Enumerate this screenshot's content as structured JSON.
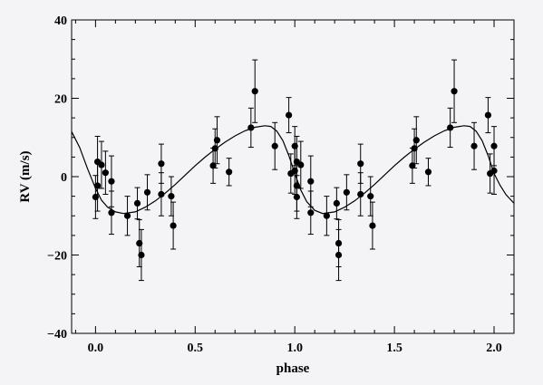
{
  "chart_data": {
    "type": "scatter",
    "title": "",
    "xlabel": "phase",
    "ylabel": "RV (m/s)",
    "xlim": [
      -0.12,
      2.1
    ],
    "ylim": [
      -40,
      40
    ],
    "x_ticks": [
      {
        "value": 0.0,
        "label": "0.0"
      },
      {
        "value": 0.5,
        "label": "0.5"
      },
      {
        "value": 1.0,
        "label": "1.0"
      },
      {
        "value": 1.5,
        "label": "1.5"
      },
      {
        "value": 2.0,
        "label": "2.0"
      }
    ],
    "y_ticks": [
      {
        "value": -40,
        "label": "−40"
      },
      {
        "value": -20,
        "label": "−20"
      },
      {
        "value": 0,
        "label": "0"
      },
      {
        "value": 20,
        "label": "20"
      },
      {
        "value": 40,
        "label": "40"
      }
    ],
    "grid": false,
    "legend": "none",
    "colors": {
      "background": "#f4f3f6",
      "ink": "#000000"
    },
    "series": [
      {
        "type": "scatter",
        "points": [
          {
            "x": 0.0,
            "y": -5.2,
            "err": 5.5
          },
          {
            "x": 0.01,
            "y": 3.8,
            "err": 6.5
          },
          {
            "x": 0.01,
            "y": -2.3,
            "err": 6.5
          },
          {
            "x": 0.03,
            "y": 3.0,
            "err": 6.0
          },
          {
            "x": 0.05,
            "y": 1.0,
            "err": 5.5
          },
          {
            "x": 0.08,
            "y": -1.2,
            "err": 6.5
          },
          {
            "x": 0.08,
            "y": -9.2,
            "err": 5.5
          },
          {
            "x": 0.16,
            "y": -10.0,
            "err": 5.0
          },
          {
            "x": 0.21,
            "y": -6.8,
            "err": 4.0
          },
          {
            "x": 0.22,
            "y": -17.0,
            "err": 6.0
          },
          {
            "x": 0.23,
            "y": -20.0,
            "err": 6.5
          },
          {
            "x": 0.26,
            "y": -4.0,
            "err": 4.5
          },
          {
            "x": 0.33,
            "y": 3.3,
            "err": 5.0
          },
          {
            "x": 0.33,
            "y": -4.5,
            "err": 5.5
          },
          {
            "x": 0.38,
            "y": -5.0,
            "err": 5.0
          },
          {
            "x": 0.39,
            "y": -12.5,
            "err": 6.0
          },
          {
            "x": 0.59,
            "y": 2.8,
            "err": 4.5
          },
          {
            "x": 0.6,
            "y": 7.2,
            "err": 5.0
          },
          {
            "x": 0.61,
            "y": 9.3,
            "err": 6.0
          },
          {
            "x": 0.67,
            "y": 1.2,
            "err": 3.5
          },
          {
            "x": 0.78,
            "y": 12.5,
            "err": 5.0
          },
          {
            "x": 0.8,
            "y": 21.8,
            "err": 8.0
          },
          {
            "x": 0.9,
            "y": 7.8,
            "err": 6.0
          },
          {
            "x": 0.97,
            "y": 15.7,
            "err": 4.5
          },
          {
            "x": 0.98,
            "y": 0.8,
            "err": 5.0
          },
          {
            "x": 1.0,
            "y": 1.5,
            "err": 6.0
          },
          {
            "x": 1.0,
            "y": 7.8,
            "err": 5.0
          },
          {
            "x": 1.01,
            "y": -5.2,
            "err": 5.5
          },
          {
            "x": 1.01,
            "y": 3.8,
            "err": 6.5
          },
          {
            "x": 1.01,
            "y": -2.3,
            "err": 6.5
          },
          {
            "x": 1.03,
            "y": 3.0,
            "err": 6.0
          },
          {
            "x": 1.08,
            "y": -1.2,
            "err": 6.5
          },
          {
            "x": 1.08,
            "y": -9.2,
            "err": 5.5
          },
          {
            "x": 1.16,
            "y": -10.0,
            "err": 5.0
          },
          {
            "x": 1.21,
            "y": -6.8,
            "err": 4.0
          },
          {
            "x": 1.22,
            "y": -17.0,
            "err": 6.0
          },
          {
            "x": 1.22,
            "y": -20.0,
            "err": 6.5
          },
          {
            "x": 1.26,
            "y": -4.0,
            "err": 4.5
          },
          {
            "x": 1.33,
            "y": 3.3,
            "err": 5.0
          },
          {
            "x": 1.33,
            "y": -4.5,
            "err": 5.5
          },
          {
            "x": 1.38,
            "y": -5.0,
            "err": 5.0
          },
          {
            "x": 1.39,
            "y": -12.5,
            "err": 6.0
          },
          {
            "x": 1.59,
            "y": 2.8,
            "err": 4.5
          },
          {
            "x": 1.6,
            "y": 7.2,
            "err": 5.0
          },
          {
            "x": 1.61,
            "y": 9.3,
            "err": 6.0
          },
          {
            "x": 1.67,
            "y": 1.2,
            "err": 3.5
          },
          {
            "x": 1.78,
            "y": 12.5,
            "err": 5.0
          },
          {
            "x": 1.8,
            "y": 21.8,
            "err": 8.0
          },
          {
            "x": 1.9,
            "y": 7.8,
            "err": 6.0
          },
          {
            "x": 1.97,
            "y": 15.7,
            "err": 4.5
          },
          {
            "x": 1.98,
            "y": 0.8,
            "err": 5.0
          },
          {
            "x": 2.0,
            "y": 1.5,
            "err": 6.0
          },
          {
            "x": 2.0,
            "y": 7.8,
            "err": 5.0
          }
        ]
      },
      {
        "type": "line",
        "points": [
          {
            "x": -0.12,
            "y": 11.5
          },
          {
            "x": -0.08,
            "y": 7.5
          },
          {
            "x": -0.04,
            "y": 2.0
          },
          {
            "x": 0.0,
            "y": -3.0
          },
          {
            "x": 0.03,
            "y": -6.0
          },
          {
            "x": 0.06,
            "y": -7.8
          },
          {
            "x": 0.1,
            "y": -9.0
          },
          {
            "x": 0.14,
            "y": -9.4
          },
          {
            "x": 0.2,
            "y": -9.0
          },
          {
            "x": 0.25,
            "y": -7.8
          },
          {
            "x": 0.3,
            "y": -6.2
          },
          {
            "x": 0.35,
            "y": -4.2
          },
          {
            "x": 0.4,
            "y": -2.0
          },
          {
            "x": 0.45,
            "y": 0.4
          },
          {
            "x": 0.5,
            "y": 2.8
          },
          {
            "x": 0.55,
            "y": 5.0
          },
          {
            "x": 0.6,
            "y": 7.0
          },
          {
            "x": 0.65,
            "y": 8.8
          },
          {
            "x": 0.7,
            "y": 10.4
          },
          {
            "x": 0.75,
            "y": 11.7
          },
          {
            "x": 0.8,
            "y": 12.6
          },
          {
            "x": 0.85,
            "y": 13.0
          },
          {
            "x": 0.88,
            "y": 12.8
          },
          {
            "x": 0.91,
            "y": 11.6
          },
          {
            "x": 0.94,
            "y": 9.2
          },
          {
            "x": 0.97,
            "y": 5.4
          },
          {
            "x": 1.0,
            "y": 0.8
          },
          {
            "x": 1.03,
            "y": -3.4
          },
          {
            "x": 1.06,
            "y": -6.4
          },
          {
            "x": 1.1,
            "y": -8.6
          },
          {
            "x": 1.14,
            "y": -9.4
          },
          {
            "x": 1.2,
            "y": -9.0
          },
          {
            "x": 1.25,
            "y": -7.8
          },
          {
            "x": 1.3,
            "y": -6.2
          },
          {
            "x": 1.35,
            "y": -4.2
          },
          {
            "x": 1.4,
            "y": -2.0
          },
          {
            "x": 1.45,
            "y": 0.4
          },
          {
            "x": 1.5,
            "y": 2.8
          },
          {
            "x": 1.55,
            "y": 5.0
          },
          {
            "x": 1.6,
            "y": 7.0
          },
          {
            "x": 1.65,
            "y": 8.8
          },
          {
            "x": 1.7,
            "y": 10.4
          },
          {
            "x": 1.75,
            "y": 11.7
          },
          {
            "x": 1.8,
            "y": 12.6
          },
          {
            "x": 1.85,
            "y": 13.0
          },
          {
            "x": 1.88,
            "y": 12.8
          },
          {
            "x": 1.91,
            "y": 11.6
          },
          {
            "x": 1.94,
            "y": 9.2
          },
          {
            "x": 1.97,
            "y": 5.4
          },
          {
            "x": 2.0,
            "y": 0.8
          },
          {
            "x": 2.03,
            "y": -2.2
          },
          {
            "x": 2.06,
            "y": -4.6
          },
          {
            "x": 2.1,
            "y": -6.8
          }
        ]
      }
    ]
  }
}
